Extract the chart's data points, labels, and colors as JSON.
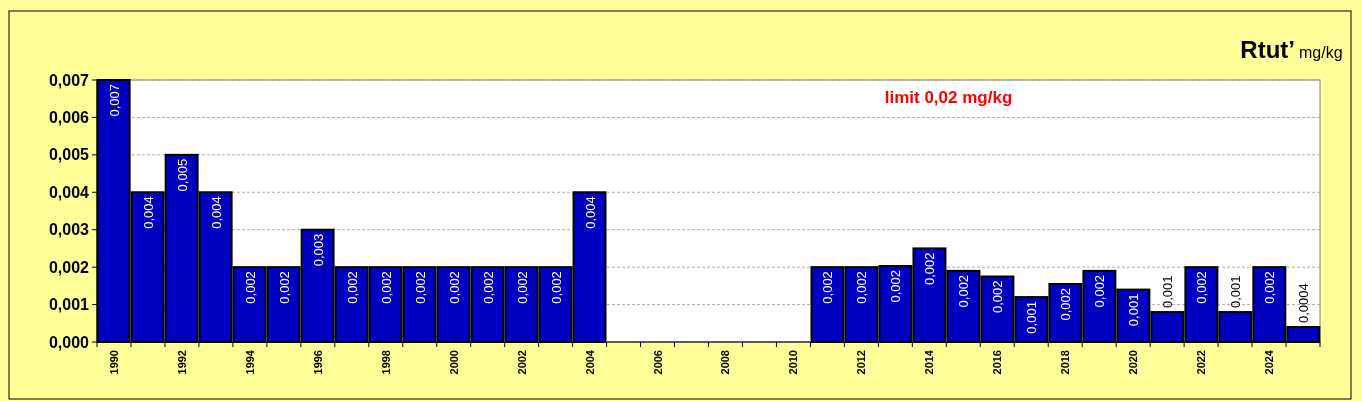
{
  "chart_data": {
    "type": "bar",
    "title": "Rtut’",
    "subtitle": "mg/kg",
    "annotations": [
      "limit 0,02 mg/kg"
    ],
    "categories": [
      "1990",
      null,
      "1992",
      null,
      "1994",
      null,
      "1996",
      null,
      "1998",
      null,
      "2000",
      null,
      "2002",
      null,
      "2004",
      null,
      "2006",
      null,
      "2008",
      null,
      "2010",
      null,
      "2012",
      null,
      "2014",
      null,
      "2016",
      null,
      "2018",
      null,
      "2020",
      null,
      "2022",
      null,
      "2024",
      null
    ],
    "values": [
      0.007,
      0.004,
      0.005,
      0.004,
      0.002,
      0.002,
      0.003,
      0.002,
      0.002,
      0.002,
      0.002,
      0.002,
      0.002,
      0.002,
      0.004,
      null,
      null,
      null,
      null,
      null,
      null,
      0.002,
      0.002,
      0.00203,
      0.0025,
      0.0019,
      0.00175,
      0.0012,
      0.00155,
      0.0019,
      0.0014,
      0.0008,
      0.002,
      0.0008,
      0.002,
      0.0004
    ],
    "value_labels": [
      "0,007",
      "0,004",
      "0,005",
      "0,004",
      "0,002",
      "0,002",
      "0,003",
      "0,002",
      "0,002",
      "0,002",
      "0,002",
      "0,002",
      "0,002",
      "0,002",
      "0,004",
      null,
      null,
      null,
      null,
      null,
      null,
      "0,002",
      "0,002",
      "0,002",
      "0,002",
      "0,002",
      "0,002",
      "0,001",
      "0,002",
      "0,002",
      "0,001",
      "0,001",
      "0,002",
      "0,001",
      "0,002",
      "0,0004"
    ],
    "color": "#0000c0",
    "ylim": [
      0,
      0.007
    ],
    "yticks": [
      {
        "value": 0,
        "label": "0,000"
      },
      {
        "value": 0.001,
        "label": "0,001"
      },
      {
        "value": 0.002,
        "label": "0,002"
      },
      {
        "value": 0.003,
        "label": "0,003"
      },
      {
        "value": 0.004,
        "label": "0,004"
      },
      {
        "value": 0.005,
        "label": "0,005"
      },
      {
        "value": 0.006,
        "label": "0,006"
      },
      {
        "value": 0.007,
        "label": "0,007"
      }
    ],
    "grid": "y"
  }
}
